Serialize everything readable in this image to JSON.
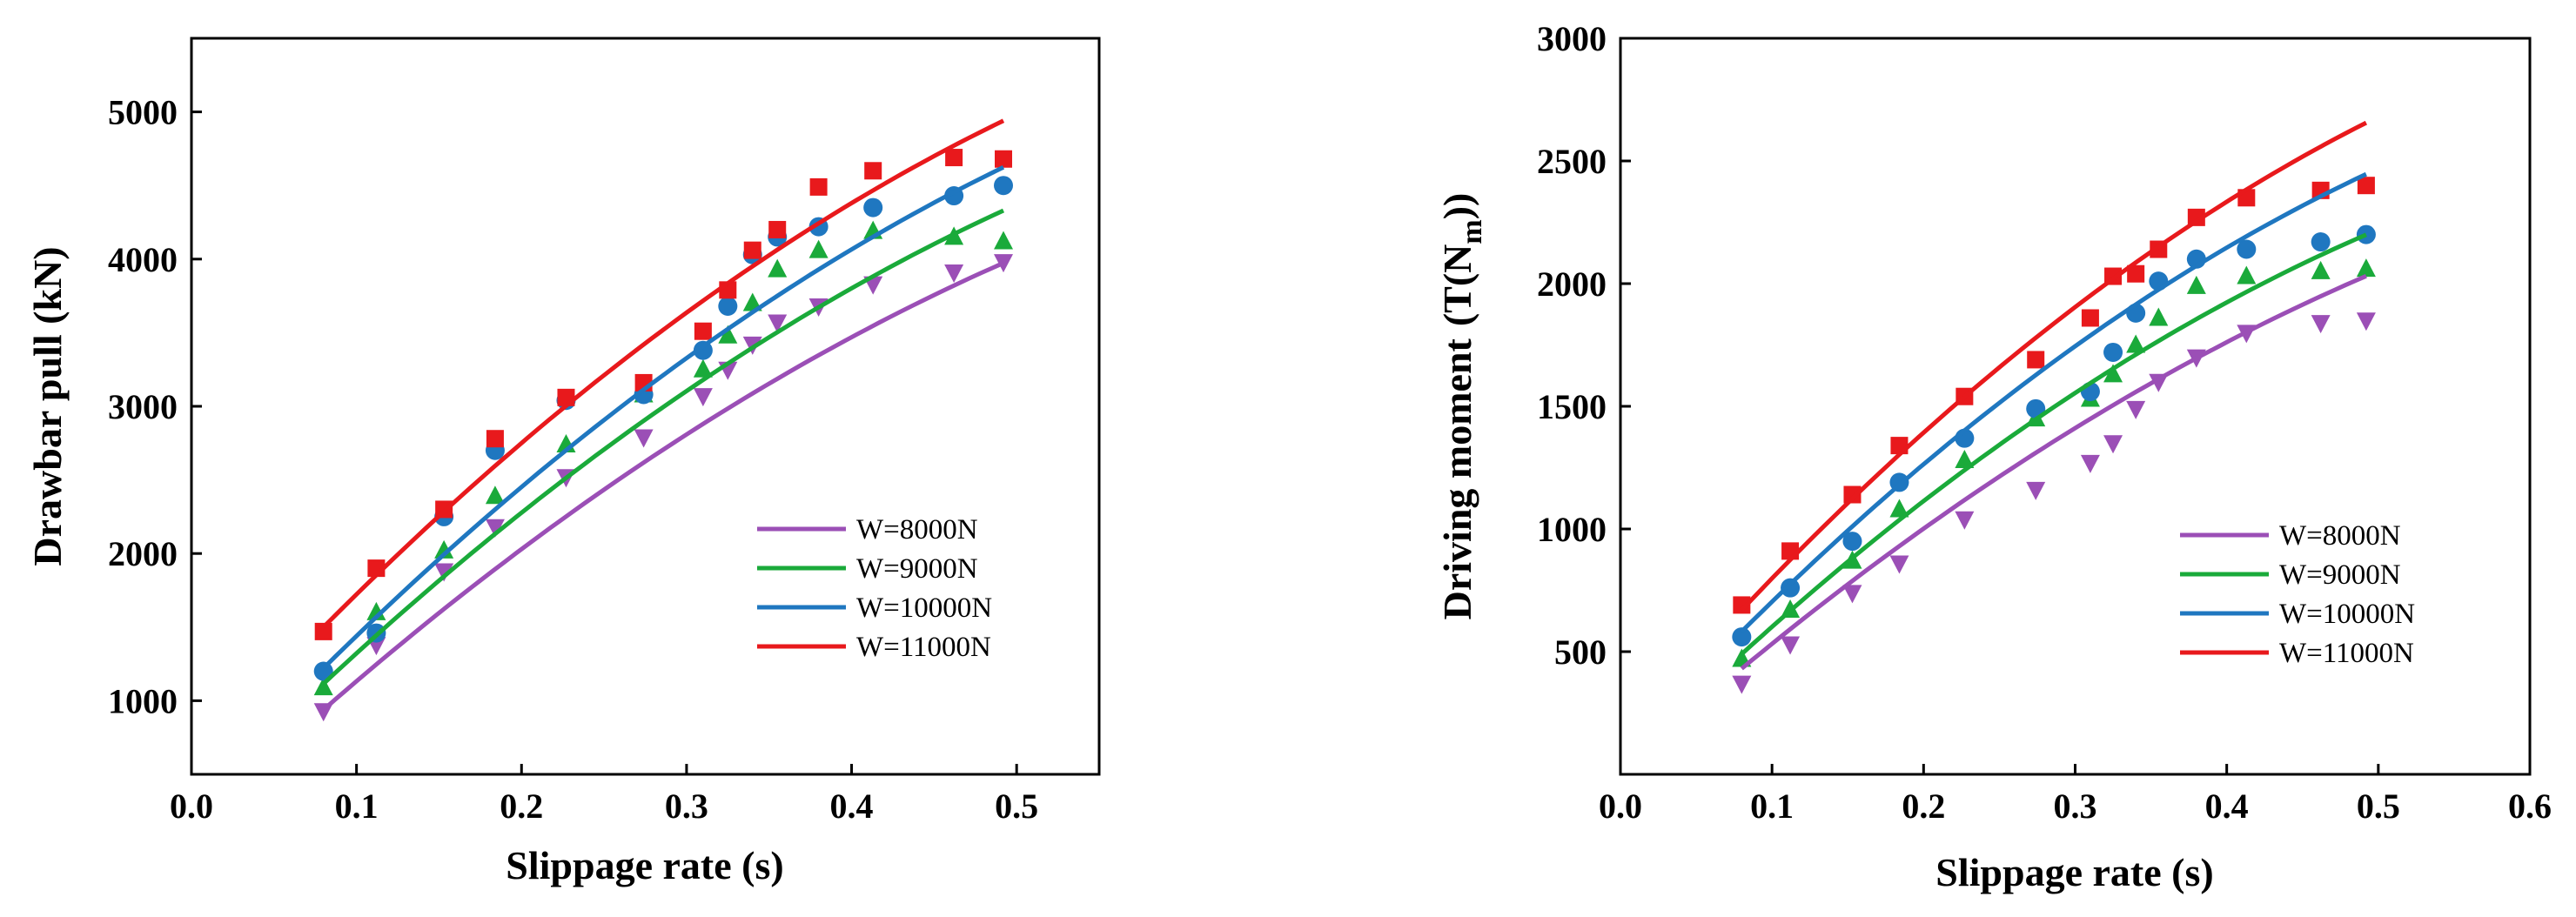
{
  "chart_data": [
    {
      "type": "scatter",
      "title": "",
      "xlabel": "Slippage rate (s)",
      "ylabel": "Drawbar pull (kN)",
      "xlim": [
        0.0,
        0.55
      ],
      "ylim": [
        500,
        5500
      ],
      "xticks": [
        "0.0",
        "0.1",
        "0.2",
        "0.3",
        "0.4",
        "0.5"
      ],
      "yticks": [
        "1000",
        "2000",
        "3000",
        "4000",
        "5000"
      ],
      "legend_position": "bottom-right",
      "x": [
        0.08,
        0.112,
        0.153,
        0.184,
        0.227,
        0.274,
        0.31,
        0.325,
        0.34,
        0.355,
        0.38,
        0.413,
        0.462,
        0.492
      ],
      "series": [
        {
          "name": "W=8000N",
          "color": "#9b4fb6",
          "marker": "triangle-down",
          "values": [
            930,
            1380,
            1880,
            2180,
            2520,
            2790,
            3070,
            3250,
            3420,
            3570,
            3680,
            3830,
            3910,
            3980
          ],
          "fit": {
            "a": -5906,
            "b": 10744,
            "c": 117
          }
        },
        {
          "name": "W=9000N",
          "color": "#1aaa3a",
          "marker": "triangle-up",
          "values": [
            1090,
            1600,
            2020,
            2390,
            2740,
            3080,
            3250,
            3480,
            3700,
            3930,
            4060,
            4190,
            4150,
            4120
          ],
          "fit": {
            "a": -6437,
            "b": 11484,
            "c": 238
          }
        },
        {
          "name": "W=10000N",
          "color": "#1f77c0",
          "marker": "circle",
          "values": [
            1200,
            1460,
            2250,
            2700,
            3040,
            3080,
            3380,
            3680,
            4030,
            4150,
            4220,
            4350,
            4430,
            4500
          ],
          "fit": {
            "a": -6855,
            "b": 12181,
            "c": 290
          }
        },
        {
          "name": "W=11000N",
          "color": "#e8191c",
          "marker": "square",
          "values": [
            1470,
            1900,
            2300,
            2780,
            3060,
            3160,
            3510,
            3790,
            4060,
            4200,
            4490,
            4600,
            4690,
            4680
          ],
          "fit": {
            "a": -7088,
            "b": 12404,
            "c": 553
          }
        }
      ]
    },
    {
      "type": "scatter",
      "title": "",
      "xlabel": "Slippage rate (s)",
      "ylabel_main": "Driving moment",
      "ylabel_unit_open": "(T(N",
      "ylabel_unit_sub": "m",
      "ylabel_unit_close": "))",
      "xlim": [
        0.0,
        0.6
      ],
      "ylim": [
        0,
        3000
      ],
      "xticks": [
        "0.0",
        "0.1",
        "0.2",
        "0.3",
        "0.4",
        "0.5",
        "0.6"
      ],
      "yticks": [
        "500",
        "1000",
        "1500",
        "2000",
        "2500",
        "3000"
      ],
      "legend_position": "bottom-right",
      "x": [
        0.08,
        0.112,
        0.153,
        0.184,
        0.227,
        0.274,
        0.31,
        0.325,
        0.34,
        0.355,
        0.38,
        0.413,
        0.462,
        0.492
      ],
      "series": [
        {
          "name": "W=8000N",
          "color": "#9b4fb6",
          "marker": "triangle-down",
          "values": [
            370,
            530,
            740,
            860,
            1040,
            1160,
            1270,
            1350,
            1490,
            1600,
            1700,
            1800,
            1840,
            1850
          ],
          "fit": {
            "a": -2978,
            "b": 5587,
            "c": 3
          }
        },
        {
          "name": "W=9000N",
          "color": "#1aaa3a",
          "marker": "triangle-up",
          "values": [
            470,
            670,
            870,
            1080,
            1280,
            1450,
            1530,
            1630,
            1750,
            1860,
            1990,
            2030,
            2050,
            2060
          ],
          "fit": {
            "a": -3588,
            "b": 6201,
            "c": 17
          }
        },
        {
          "name": "W=10000N",
          "color": "#1f77c0",
          "marker": "circle",
          "values": [
            560,
            760,
            950,
            1190,
            1370,
            1490,
            1560,
            1720,
            1880,
            2010,
            2100,
            2140,
            2170,
            2200
          ],
          "fit": {
            "a": -3962,
            "b": 6791,
            "c": 64
          }
        },
        {
          "name": "W=11000N",
          "color": "#e8191c",
          "marker": "square",
          "values": [
            690,
            910,
            1140,
            1340,
            1540,
            1690,
            1860,
            2030,
            2040,
            2140,
            2270,
            2350,
            2380,
            2400
          ],
          "fit": {
            "a": -4120,
            "b": 7177,
            "c": 122
          }
        }
      ]
    }
  ]
}
